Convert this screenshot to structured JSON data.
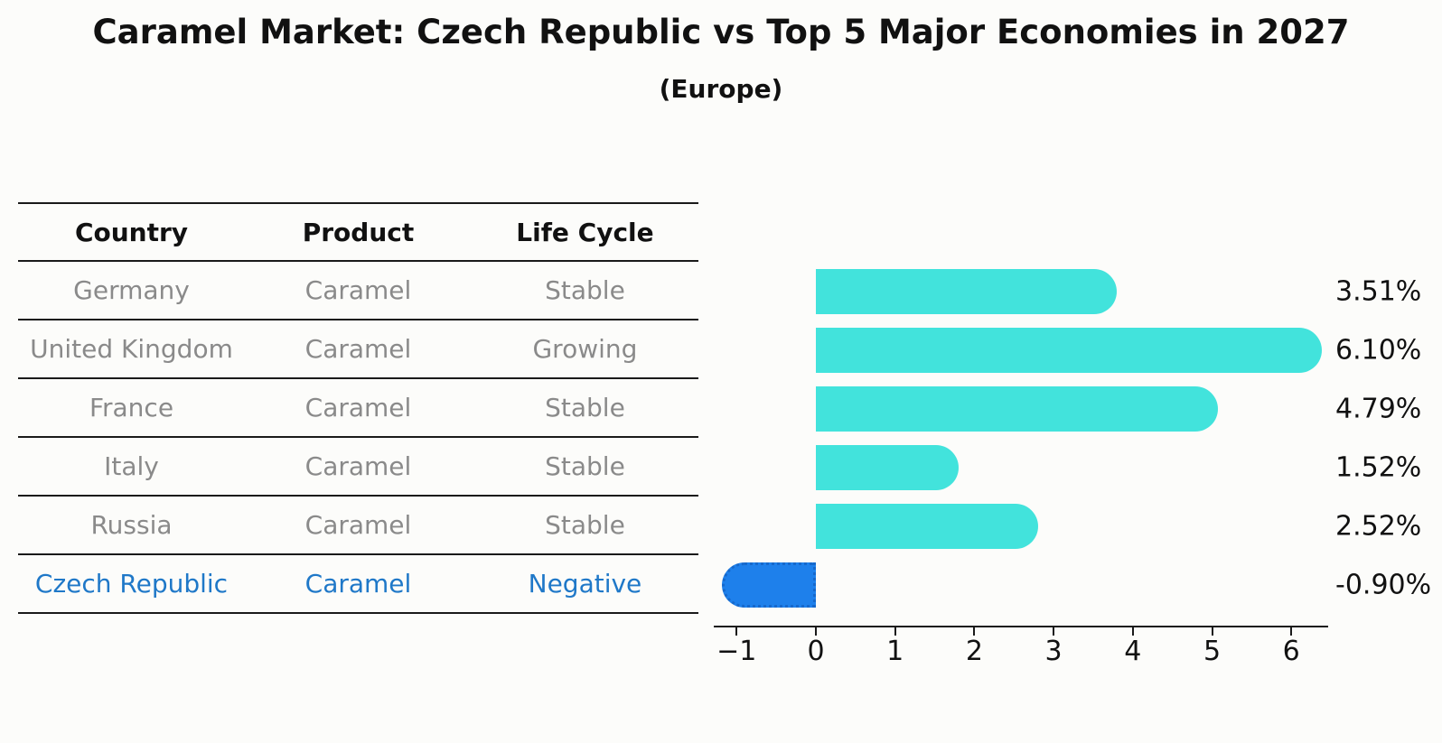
{
  "title": "Caramel Market: Czech Republic vs Top 5 Major Economies in 2027",
  "subtitle": "(Europe)",
  "table": {
    "headers": [
      "Country",
      "Product",
      "Life Cycle"
    ],
    "rows": [
      {
        "country": "Germany",
        "product": "Caramel",
        "life_cycle": "Stable",
        "highlight": false
      },
      {
        "country": "United Kingdom",
        "product": "Caramel",
        "life_cycle": "Growing",
        "highlight": false
      },
      {
        "country": "France",
        "product": "Caramel",
        "life_cycle": "Stable",
        "highlight": false
      },
      {
        "country": "Italy",
        "product": "Caramel",
        "life_cycle": "Stable",
        "highlight": false
      },
      {
        "country": "Russia",
        "product": "Caramel",
        "life_cycle": "Stable",
        "highlight": false
      },
      {
        "country": "Czech Republic",
        "product": "Caramel",
        "life_cycle": "Negative",
        "highlight": true
      }
    ]
  },
  "chart_data": {
    "type": "bar",
    "orientation": "horizontal",
    "title": "Caramel Market: Czech Republic vs Top 5 Major Economies in 2027",
    "subtitle": "(Europe)",
    "categories": [
      "Germany",
      "United Kingdom",
      "France",
      "Italy",
      "Russia",
      "Czech Republic"
    ],
    "values": [
      3.51,
      6.1,
      4.79,
      1.52,
      2.52,
      -0.9
    ],
    "value_labels": [
      "3.51%",
      "6.10%",
      "4.79%",
      "1.52%",
      "2.52%",
      "-0.90%"
    ],
    "highlight_index": 5,
    "x_ticks": [
      -1,
      0,
      1,
      2,
      3,
      4,
      5,
      6
    ],
    "x_tick_labels": [
      "−1",
      "0",
      "1",
      "2",
      "3",
      "4",
      "5",
      "6"
    ],
    "xlim": [
      -1.3,
      6.5
    ],
    "grid": false,
    "legend": null,
    "colors": {
      "default_bar": "#42e3dc",
      "highlight_bar": "#1e80eb",
      "highlight_border": "#1669cc",
      "highlight_text": "#1f78c8",
      "axis": "#1a1a1a",
      "cell_text": "#8a8a8a",
      "header_text": "#111111"
    }
  }
}
